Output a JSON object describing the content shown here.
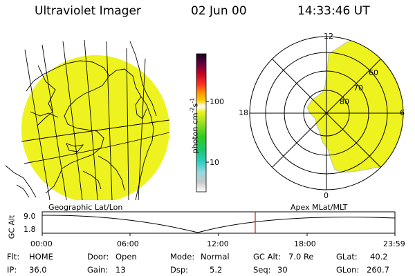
{
  "header": {
    "instrument": "Ultraviolet Imager",
    "date": "02 Jun 00",
    "time": "14:33:46 UT"
  },
  "colorbar": {
    "unit_label": "photon cm",
    "unit_exp1": "-2",
    "unit_mid": "s",
    "unit_exp2": "-1",
    "ticks": [
      "100",
      "10"
    ]
  },
  "polar": {
    "mlt_labels": [
      "12",
      "18",
      "6",
      "0"
    ],
    "mlat_labels": [
      "60",
      "70",
      "80"
    ]
  },
  "map_labels": {
    "left": "Geographic Lat/Lon",
    "right": "Apex MLat/MLT"
  },
  "altitude": {
    "axis_label": "GC Alt",
    "ticks": [
      "9.0",
      "1.8"
    ],
    "time_ticks": [
      "00:00",
      "06:00",
      "12:00",
      "18:00",
      "23:59"
    ],
    "marker_time": "14:33"
  },
  "status": {
    "flt_label": "Flt:",
    "flt_value": "HOME",
    "ip_label": "IP:",
    "ip_value": "36.0",
    "door_label": "Door:",
    "door_value": "Open",
    "gain_label": "Gain:",
    "gain_value": "13",
    "mode_label": "Mode:",
    "mode_value": "Normal",
    "dsp_label": "Dsp:",
    "dsp_value": "5.2",
    "gcalt_label": "GC Alt:",
    "gcalt_value": "7.0 Re",
    "seq_label": "Seq:",
    "seq_value": "30",
    "glat_label": "GLat:",
    "glat_value": "40.2",
    "glon_label": "GLon:",
    "glon_value": "260.7"
  },
  "colors": {
    "emission": "#eef21e",
    "marker": "#d0102a"
  }
}
